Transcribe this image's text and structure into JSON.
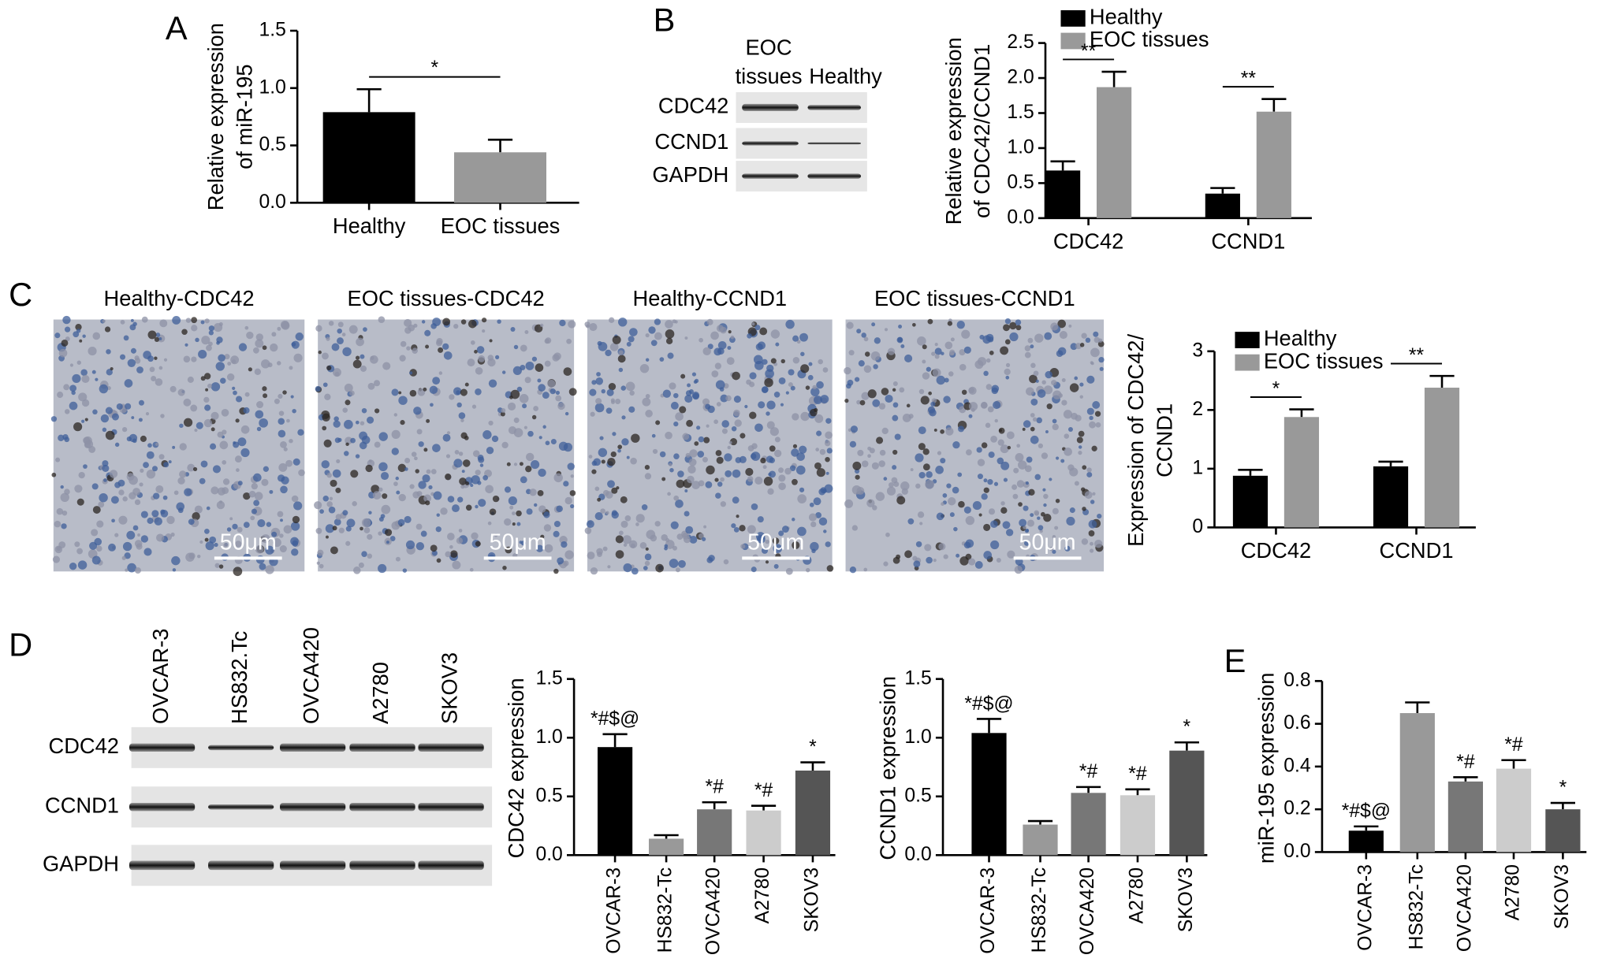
{
  "panel_labels": [
    "A",
    "B",
    "C",
    "D",
    "E"
  ],
  "blot_b": {
    "columns": [
      "EOC",
      "tissues",
      "Healthy"
    ],
    "rows": [
      "CDC42",
      "CCND1",
      "GAPDH"
    ]
  },
  "blot_d": {
    "columns": [
      "OVCAR-3",
      "HS832.Tc",
      "OVCA420",
      "A2780",
      "SKOV3"
    ],
    "rows": [
      "CDC42",
      "CCND1",
      "GAPDH"
    ]
  },
  "images": {
    "titles": [
      "Healthy-CDC42",
      "EOC tissues-CDC42",
      "Healthy-CCND1",
      "EOC tissues-CCND1"
    ],
    "scale_labels": [
      "50μm",
      "50μm",
      "50μm",
      "50μm"
    ]
  },
  "chart_data": [
    {
      "type": "bar",
      "ylabel": [
        "Relative expression",
        "of miR-195"
      ],
      "categories": [
        "Healthy",
        "EOC tissues"
      ],
      "values": [
        0.79,
        0.44
      ],
      "errors": [
        0.2,
        0.11
      ],
      "colors": [
        "#000000",
        "#999999"
      ],
      "ylim": [
        0,
        1.5
      ],
      "yticks": [
        {
          "value": 0,
          "label": "0.0"
        },
        {
          "value": 0.5,
          "label": "0.5"
        },
        {
          "value": 1,
          "label": "1.0"
        },
        {
          "value": 1.5,
          "label": "1.5"
        }
      ],
      "significance": "*"
    },
    {
      "type": "grouped_bar",
      "ylabel": [
        "Relative expression",
        "of CDC42/CCND1"
      ],
      "categories": [
        "CDC42",
        "CCND1"
      ],
      "series": [
        {
          "name": "Healthy",
          "color": "#000000",
          "values": [
            0.68,
            0.35
          ],
          "errors": [
            0.13,
            0.08
          ]
        },
        {
          "name": "EOC tissues",
          "color": "#999999",
          "values": [
            1.87,
            1.52
          ],
          "errors": [
            0.22,
            0.18
          ]
        }
      ],
      "ylim": [
        0,
        2.5
      ],
      "yticks": [
        {
          "value": 0,
          "label": "0.0"
        },
        {
          "value": 0.5,
          "label": "0.5"
        },
        {
          "value": 1,
          "label": "1.0"
        },
        {
          "value": 1.5,
          "label": "1.5"
        },
        {
          "value": 2,
          "label": "2.0"
        },
        {
          "value": 2.5,
          "label": "2.5"
        }
      ],
      "significance": [
        "**",
        "**"
      ]
    },
    {
      "type": "grouped_bar",
      "ylabel": [
        "Expression of CDC42/",
        "CCND1"
      ],
      "categories": [
        "CDC42",
        "CCND1"
      ],
      "series": [
        {
          "name": "Healthy",
          "color": "#000000",
          "values": [
            0.88,
            1.04
          ],
          "errors": [
            0.1,
            0.08
          ]
        },
        {
          "name": "EOC tissues",
          "color": "#999999",
          "values": [
            1.88,
            2.38
          ],
          "errors": [
            0.13,
            0.2
          ]
        }
      ],
      "ylim": [
        0,
        3
      ],
      "yticks": [
        0,
        1,
        2,
        3
      ],
      "significance": [
        "*",
        "**"
      ]
    },
    {
      "type": "bar",
      "ylabel": [
        "CDC42 expression"
      ],
      "categories": [
        "OVCAR-3",
        "HS832-Tc",
        "OVCA420",
        "A2780",
        "SKOV3"
      ],
      "values": [
        0.92,
        0.14,
        0.39,
        0.38,
        0.72
      ],
      "errors": [
        0.11,
        0.03,
        0.06,
        0.04,
        0.07
      ],
      "colors": [
        "#000000",
        "#999999",
        "#777777",
        "#cccccc",
        "#555555"
      ],
      "ylim": [
        0,
        1.5
      ],
      "yticks": [
        {
          "value": 0,
          "label": "0.0"
        },
        {
          "value": 0.5,
          "label": "0.5"
        },
        {
          "value": 1,
          "label": "1.0"
        },
        {
          "value": 1.5,
          "label": "1.5"
        }
      ],
      "annotations": [
        "*#$@",
        null,
        "*#",
        "*#",
        "*"
      ]
    },
    {
      "type": "bar",
      "ylabel": [
        "CCND1 expression"
      ],
      "categories": [
        "OVCAR-3",
        "HS832-Tc",
        "OVCA420",
        "A2780",
        "SKOV3"
      ],
      "values": [
        1.04,
        0.26,
        0.53,
        0.51,
        0.89
      ],
      "errors": [
        0.12,
        0.03,
        0.05,
        0.05,
        0.07
      ],
      "colors": [
        "#000000",
        "#999999",
        "#777777",
        "#cccccc",
        "#555555"
      ],
      "ylim": [
        0,
        1.5
      ],
      "yticks": [
        {
          "value": 0,
          "label": "0.0"
        },
        {
          "value": 0.5,
          "label": "0.5"
        },
        {
          "value": 1,
          "label": "1.0"
        },
        {
          "value": 1.5,
          "label": "1.5"
        }
      ],
      "annotations": [
        "*#$@",
        null,
        "*#",
        "*#",
        "*"
      ]
    },
    {
      "type": "bar",
      "ylabel": [
        "miR-195 expression"
      ],
      "categories": [
        "OVCAR-3",
        "HS832-Tc",
        "OVCA420",
        "A2780",
        "SKOV3"
      ],
      "values": [
        0.1,
        0.65,
        0.33,
        0.39,
        0.2
      ],
      "errors": [
        0.02,
        0.05,
        0.02,
        0.04,
        0.03
      ],
      "colors": [
        "#000000",
        "#999999",
        "#777777",
        "#cccccc",
        "#555555"
      ],
      "ylim": [
        0,
        0.8
      ],
      "yticks": [
        {
          "value": 0,
          "label": "0.0"
        },
        {
          "value": 0.2,
          "label": "0.2"
        },
        {
          "value": 0.4,
          "label": "0.4"
        },
        {
          "value": 0.6,
          "label": "0.6"
        },
        {
          "value": 0.8,
          "label": "0.8"
        }
      ],
      "annotations": [
        "*#$@",
        null,
        "*#",
        "*#",
        "*"
      ]
    }
  ]
}
